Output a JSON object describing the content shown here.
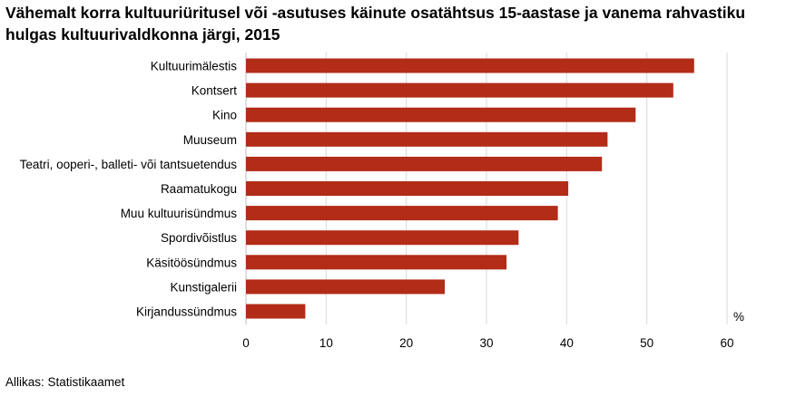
{
  "chart_data": {
    "type": "bar",
    "orientation": "horizontal",
    "title": "Vähemalt korra kultuuriüritusel või -asutuses käinute osatähtsus 15-aastase ja vanema rahvastiku hulgas kultuurivaldkonna järgi, 2015",
    "categories": [
      "Kultuurimälestis",
      "Kontsert",
      "Kino",
      "Muuseum",
      "Teatri, ooperi-, balleti- või tantsuetendus",
      "Raamatukogu",
      "Muu kultuurisündmus",
      "Spordivõistlus",
      "Käsitöösündmus",
      "Kunstigalerii",
      "Kirjandussündmus"
    ],
    "values": [
      55.9,
      53.3,
      48.6,
      45.1,
      44.4,
      40.2,
      38.9,
      34.0,
      32.5,
      24.8,
      7.4
    ],
    "xlabel": "%",
    "xlim": [
      0,
      60
    ],
    "xticks": [
      0,
      10,
      20,
      30,
      40,
      50,
      60
    ],
    "grid": true,
    "bar_color": "#b22c17",
    "grid_color": "#d9d9d9"
  },
  "source": "Allikas: Statistikaamet"
}
